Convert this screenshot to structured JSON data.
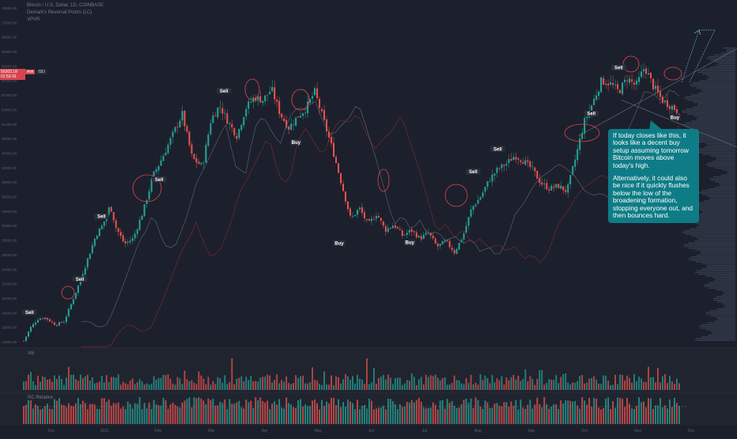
{
  "legend": {
    "symbol": "Bitcoin / U.S. Dollar, 1D, COINBASE",
    "indicator": "Demark's Reversal Points (LC)",
    "vpvr": "VPVR"
  },
  "price_tag": {
    "price": "56303.18",
    "countdown": "01:53:16"
  },
  "order_tags": {
    "ask": "Ask",
    "spread": "ISD"
  },
  "callout": {
    "paragraph1": "If today closes like this, it looks like a decent buy setup assuming tomorrow Bitcoin moves above today's high.",
    "paragraph2": "Alternatively, it could also be nice if it quickly flushes below the low of the broadening formation, stopping everyone out, and then bounces hard."
  },
  "panes": {
    "volume_label": "Vol",
    "relvol_label": "RC Relative"
  },
  "colors": {
    "background": "#1b1f2b",
    "up": "#26a69a",
    "down": "#ef5350",
    "callout": "#0e7c86",
    "circle": "#e0464c",
    "label_bg": "#2a2e39"
  },
  "chart_data": {
    "type": "candlestick",
    "symbol": "BTCUSD",
    "y_ticks": [
      "76000.00",
      "72000.00",
      "69000.00",
      "66000.00",
      "63000.00",
      "60000.00",
      "57000.00",
      "54000.00",
      "51000.00",
      "48000.00",
      "45000.00",
      "42000.00",
      "39000.00",
      "36000.00",
      "33000.00",
      "30000.00",
      "28000.00",
      "26000.00",
      "24000.00",
      "22000.00",
      "20000.00",
      "18000.00",
      "16000.00",
      "14000.00"
    ],
    "x_ticks": [
      "Dec",
      "2021",
      "Feb",
      "Mar",
      "Apr",
      "May",
      "Jun",
      "Jul",
      "Aug",
      "Sep",
      "Oct",
      "Nov",
      "Dec"
    ],
    "ylim": [
      14000,
      76000
    ],
    "close_path": [
      {
        "x": 0,
        "y": 15000
      },
      {
        "x": 0.5,
        "y": 17500
      },
      {
        "x": 1.0,
        "y": 19000
      },
      {
        "x": 1.5,
        "y": 19200
      },
      {
        "x": 2.2,
        "y": 17900
      },
      {
        "x": 2.8,
        "y": 18500
      },
      {
        "x": 3.5,
        "y": 23000
      },
      {
        "x": 4.2,
        "y": 28000
      },
      {
        "x": 5.0,
        "y": 34000
      },
      {
        "x": 5.5,
        "y": 36000
      },
      {
        "x": 6.0,
        "y": 39500
      },
      {
        "x": 6.4,
        "y": 35500
      },
      {
        "x": 7.0,
        "y": 32500
      },
      {
        "x": 7.6,
        "y": 33500
      },
      {
        "x": 8.3,
        "y": 38500
      },
      {
        "x": 9.0,
        "y": 45000
      },
      {
        "x": 9.6,
        "y": 48000
      },
      {
        "x": 10.3,
        "y": 52000
      },
      {
        "x": 11.0,
        "y": 56000
      },
      {
        "x": 11.7,
        "y": 48000
      },
      {
        "x": 12.4,
        "y": 46500
      },
      {
        "x": 13.0,
        "y": 55000
      },
      {
        "x": 13.6,
        "y": 57500
      },
      {
        "x": 14.2,
        "y": 54500
      },
      {
        "x": 14.8,
        "y": 52000
      },
      {
        "x": 15.4,
        "y": 57000
      },
      {
        "x": 16.0,
        "y": 59000
      },
      {
        "x": 16.6,
        "y": 58500
      },
      {
        "x": 17.2,
        "y": 60500
      },
      {
        "x": 17.8,
        "y": 56000
      },
      {
        "x": 18.4,
        "y": 53500
      },
      {
        "x": 19.0,
        "y": 55500
      },
      {
        "x": 19.6,
        "y": 57000
      },
      {
        "x": 20.2,
        "y": 60000
      },
      {
        "x": 20.8,
        "y": 55000
      },
      {
        "x": 21.5,
        "y": 49000
      },
      {
        "x": 22.1,
        "y": 43000
      },
      {
        "x": 22.7,
        "y": 37000
      },
      {
        "x": 23.3,
        "y": 39000
      },
      {
        "x": 23.9,
        "y": 36000
      },
      {
        "x": 24.5,
        "y": 38000
      },
      {
        "x": 25.1,
        "y": 35000
      },
      {
        "x": 25.7,
        "y": 36000
      },
      {
        "x": 26.3,
        "y": 34000
      },
      {
        "x": 26.9,
        "y": 35000
      },
      {
        "x": 27.5,
        "y": 33500
      },
      {
        "x": 28.1,
        "y": 34500
      },
      {
        "x": 28.7,
        "y": 32000
      },
      {
        "x": 29.3,
        "y": 33000
      },
      {
        "x": 29.9,
        "y": 31000
      },
      {
        "x": 30.5,
        "y": 34000
      },
      {
        "x": 31.1,
        "y": 39000
      },
      {
        "x": 31.7,
        "y": 41000
      },
      {
        "x": 32.3,
        "y": 44000
      },
      {
        "x": 32.9,
        "y": 46000
      },
      {
        "x": 33.5,
        "y": 47000
      },
      {
        "x": 34.1,
        "y": 48500
      },
      {
        "x": 34.7,
        "y": 47500
      },
      {
        "x": 35.3,
        "y": 46000
      },
      {
        "x": 35.9,
        "y": 43500
      },
      {
        "x": 36.5,
        "y": 42500
      },
      {
        "x": 37.1,
        "y": 43000
      },
      {
        "x": 37.7,
        "y": 42000
      },
      {
        "x": 38.3,
        "y": 48000
      },
      {
        "x": 38.9,
        "y": 54500
      },
      {
        "x": 39.5,
        "y": 58000
      },
      {
        "x": 40.1,
        "y": 62000
      },
      {
        "x": 40.7,
        "y": 61500
      },
      {
        "x": 41.3,
        "y": 60000
      },
      {
        "x": 41.9,
        "y": 62500
      },
      {
        "x": 42.5,
        "y": 61000
      },
      {
        "x": 43.1,
        "y": 64500
      },
      {
        "x": 43.7,
        "y": 61000
      },
      {
        "x": 44.3,
        "y": 58500
      },
      {
        "x": 44.9,
        "y": 57500
      },
      {
        "x": 45.5,
        "y": 56300
      }
    ],
    "signals": [
      {
        "label": "Sell",
        "x": 0.4,
        "y": 20000,
        "kind": "sell"
      },
      {
        "label": "Sell",
        "x": 3.9,
        "y": 26000,
        "kind": "sell"
      },
      {
        "label": "Sell",
        "x": 5.4,
        "y": 37300,
        "kind": "sell"
      },
      {
        "label": "Sell",
        "x": 9.4,
        "y": 44000,
        "kind": "sell"
      },
      {
        "label": "Sell",
        "x": 13.9,
        "y": 60000,
        "kind": "sell"
      },
      {
        "label": "Buy",
        "x": 18.9,
        "y": 50700,
        "kind": "buy"
      },
      {
        "label": "Buy",
        "x": 21.9,
        "y": 32500,
        "kind": "buy"
      },
      {
        "label": "Buy",
        "x": 26.8,
        "y": 32600,
        "kind": "buy"
      },
      {
        "label": "Sell",
        "x": 31.2,
        "y": 45400,
        "kind": "sell"
      },
      {
        "label": "Sell",
        "x": 32.9,
        "y": 49500,
        "kind": "sell"
      },
      {
        "label": "Sell",
        "x": 39.4,
        "y": 55900,
        "kind": "sell"
      },
      {
        "label": "Sell",
        "x": 41.3,
        "y": 64200,
        "kind": "sell"
      },
      {
        "label": "Buy",
        "x": 45.2,
        "y": 55200,
        "kind": "buy"
      }
    ]
  }
}
